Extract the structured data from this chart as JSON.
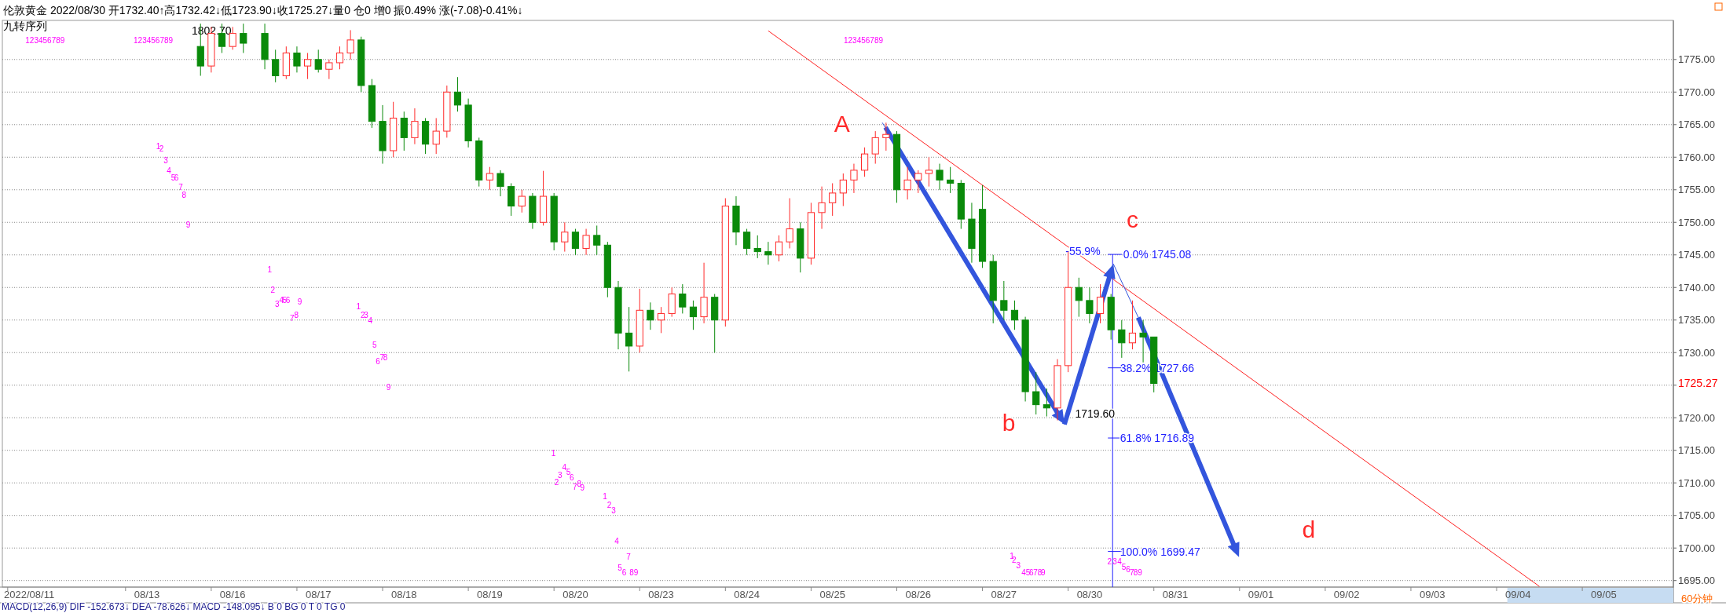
{
  "chart_data": {
    "type": "candlestick",
    "title": "伦敦黄金 2022/08/30 开1732.40↑高1732.42↓低1723.90↓收1725.27↓量0  仓0  增0 振0.49% 涨(-7.08)-0.41%↓",
    "subtitle": "九转序列",
    "categories": [
      null,
      null,
      "2022/08/11",
      null,
      null,
      null,
      null,
      null,
      null,
      null,
      null,
      null,
      null,
      "08/13",
      null,
      null,
      null,
      null,
      null,
      null,
      null,
      "08/16",
      null,
      null,
      null,
      null,
      null,
      null,
      null,
      "08/17",
      null,
      null,
      null,
      null,
      null,
      null,
      null,
      "08/18",
      null,
      null,
      null,
      null,
      null,
      null,
      null,
      "08/19",
      null,
      null,
      null,
      null,
      null,
      null,
      null,
      "08/20",
      null,
      null,
      null,
      null,
      null,
      null,
      null,
      "08/23",
      null,
      null,
      null,
      null,
      null,
      null,
      null,
      "08/24",
      null,
      null,
      null,
      null,
      null,
      null,
      null,
      "08/25",
      null,
      null,
      null,
      null,
      null,
      null,
      null,
      "08/26",
      null,
      null,
      null,
      null,
      null,
      null,
      null,
      "08/27",
      null,
      null,
      null,
      null,
      null,
      null,
      null,
      "08/30",
      null,
      null,
      null,
      null,
      null,
      null,
      null,
      "08/31",
      null,
      null,
      null,
      null,
      null,
      null,
      null,
      "09/01",
      null,
      null,
      null,
      null,
      null,
      null,
      null,
      "09/02",
      null,
      null,
      null,
      null,
      null,
      null,
      null,
      "09/03",
      null,
      null,
      null,
      null,
      null,
      null,
      null,
      "09/04",
      null,
      null,
      null,
      null,
      null,
      null,
      null,
      "09/05",
      null,
      null,
      null,
      null,
      null,
      null
    ],
    "ohlc": [
      null,
      null,
      null,
      null,
      null,
      null,
      null,
      null,
      null,
      null,
      null,
      null,
      null,
      null,
      null,
      null,
      null,
      null,
      [
        1777,
        1780.5,
        1772.5,
        1774
      ],
      [
        1774,
        1780,
        1773,
        1779
      ],
      [
        1779,
        1780.5,
        1776,
        1777
      ],
      [
        1777,
        1780,
        1776.5,
        1779
      ],
      [
        1779,
        1780.5,
        1776,
        1777.5
      ],
      null,
      [
        1779,
        1780.5,
        1773.5,
        1775
      ],
      [
        1775,
        1776.5,
        1771.5,
        1772.5
      ],
      [
        1772.5,
        1777,
        1772,
        1776
      ],
      [
        1776,
        1777,
        1773,
        1774
      ],
      [
        1774,
        1776,
        1772,
        1775
      ],
      [
        1775,
        1776.5,
        1773,
        1773.5
      ],
      [
        1773.5,
        1775,
        1772,
        1774.5
      ],
      [
        1774.5,
        1777,
        1773.5,
        1776
      ],
      [
        1776,
        1779.5,
        1775,
        1778
      ],
      [
        1778,
        1778.5,
        1770,
        1771
      ],
      [
        1771,
        1772,
        1764.5,
        1765.5
      ],
      [
        1765.5,
        1768,
        1759,
        1761
      ],
      [
        1761,
        1768.5,
        1760,
        1766
      ],
      [
        1766,
        1767,
        1761,
        1763
      ],
      [
        1763,
        1767.5,
        1762,
        1765.5
      ],
      [
        1765.5,
        1766,
        1760.5,
        1762
      ],
      [
        1762,
        1766,
        1760.5,
        1764
      ],
      [
        1764,
        1771,
        1763,
        1770
      ],
      [
        1770,
        1772.3,
        1767,
        1768
      ],
      [
        1768,
        1769,
        1761.5,
        1762.5
      ],
      [
        1762.5,
        1763,
        1755.5,
        1756.5
      ],
      [
        1756.5,
        1758.5,
        1755,
        1757.5
      ],
      [
        1757.5,
        1758,
        1754,
        1755.5
      ],
      [
        1755.5,
        1756,
        1751,
        1752.5
      ],
      [
        1752.5,
        1755,
        1751.5,
        1754
      ],
      [
        1754,
        1754.5,
        1749,
        1750
      ],
      [
        1750,
        1757.9,
        1749.5,
        1754
      ],
      [
        1754,
        1754.5,
        1745.7,
        1747
      ],
      [
        1747,
        1750,
        1745.5,
        1748.5
      ],
      [
        1748.5,
        1749,
        1745,
        1746
      ],
      [
        1746,
        1749,
        1745,
        1748
      ],
      [
        1748,
        1749.5,
        1745,
        1746.5
      ],
      [
        1746.5,
        1747,
        1738.5,
        1740
      ],
      [
        1740,
        1741,
        1730.5,
        1733
      ],
      [
        1733,
        1737,
        1727.1,
        1731
      ],
      [
        1731,
        1739.8,
        1730,
        1736.5
      ],
      [
        1736.5,
        1737.7,
        1733.5,
        1735
      ],
      [
        1735,
        1737,
        1733,
        1736
      ],
      [
        1736,
        1740,
        1735.5,
        1739
      ],
      [
        1739,
        1740.5,
        1736,
        1737
      ],
      [
        1737,
        1738,
        1733.5,
        1735.5
      ],
      [
        1735.5,
        1743.8,
        1734.5,
        1738.5
      ],
      [
        1738.5,
        1739,
        1730,
        1735
      ],
      [
        1735,
        1753.7,
        1734,
        1752.5
      ],
      [
        1752.5,
        1754,
        1746.5,
        1748.5
      ],
      [
        1748.5,
        1749,
        1745,
        1746
      ],
      [
        1746,
        1748,
        1744.5,
        1745.5
      ],
      [
        1745.5,
        1747,
        1743.5,
        1745
      ],
      [
        1745,
        1748,
        1744,
        1747
      ],
      [
        1747,
        1753.7,
        1746,
        1749
      ],
      [
        1749,
        1750,
        1742.3,
        1744.5
      ],
      [
        1744.5,
        1753,
        1743.5,
        1751.5
      ],
      [
        1751.5,
        1755.5,
        1749,
        1753
      ],
      [
        1753,
        1756,
        1751,
        1754.5
      ],
      [
        1754.5,
        1757.5,
        1752.5,
        1756.5
      ],
      [
        1756.5,
        1759,
        1754.5,
        1758
      ],
      [
        1758,
        1761.5,
        1757,
        1760.5
      ],
      [
        1760.5,
        1764,
        1759,
        1763
      ],
      [
        1763,
        1765.3,
        1761,
        1763.5
      ],
      [
        1763.5,
        1764,
        1753,
        1755
      ],
      [
        1755,
        1758.5,
        1753.5,
        1756.5
      ],
      [
        1756.5,
        1758,
        1754.5,
        1757.5
      ],
      [
        1757.5,
        1760,
        1755.5,
        1758
      ],
      [
        1758,
        1759,
        1755,
        1756.5
      ],
      [
        1756.5,
        1758.5,
        1754.5,
        1756
      ],
      [
        1756,
        1756.5,
        1749,
        1750.5
      ],
      [
        1750.5,
        1753,
        1743.8,
        1746
      ],
      [
        1752,
        1755.7,
        1743,
        1744
      ],
      [
        1744,
        1745,
        1734.5,
        1738
      ],
      [
        1738,
        1741,
        1735,
        1736.5
      ],
      [
        1736.5,
        1738,
        1733.5,
        1735
      ],
      [
        1735,
        1735.5,
        1722.5,
        1724
      ],
      [
        1724,
        1727,
        1720.5,
        1722
      ],
      [
        1722,
        1724.5,
        1720.2,
        1721.5
      ],
      [
        1721.5,
        1729,
        1719.6,
        1728
      ],
      [
        1728,
        1745.5,
        1727,
        1740
      ],
      [
        1740,
        1741.5,
        1735.5,
        1738
      ],
      [
        1738,
        1740,
        1734.5,
        1736
      ],
      [
        1736,
        1740.5,
        1734.5,
        1738.5
      ],
      [
        1738.5,
        1739,
        1732,
        1733.5
      ],
      [
        1733.5,
        1735,
        1729.2,
        1731.5
      ],
      [
        1731.5,
        1738,
        1730.5,
        1733
      ],
      [
        1733,
        1735,
        1728.5,
        1732.4
      ],
      [
        1732.4,
        1732.42,
        1723.9,
        1725.27
      ],
      null,
      null,
      null,
      null,
      null,
      null,
      null,
      null,
      null,
      null,
      null,
      null,
      null,
      null,
      null,
      null,
      null,
      null,
      null,
      null,
      null,
      null,
      null,
      null,
      null,
      null,
      null,
      null,
      null,
      null,
      null,
      null,
      null,
      null,
      null,
      null,
      null,
      null,
      null,
      null,
      null,
      null,
      null,
      null,
      null,
      null,
      null,
      null
    ],
    "series": [
      {
        "type": "line",
        "color": "#ff2020",
        "values": [
          null,
          null,
          null,
          null,
          null,
          null,
          null,
          null,
          null,
          null,
          null,
          null,
          null,
          null,
          null,
          null,
          null,
          null,
          null,
          null,
          null,
          null,
          null,
          null,
          null,
          null,
          null,
          null,
          null,
          null,
          null,
          null,
          null,
          null,
          null,
          null,
          null,
          null,
          null,
          null,
          null,
          null,
          null,
          null,
          null,
          null,
          null,
          null,
          null,
          null,
          null,
          null,
          null,
          null,
          null,
          null,
          null,
          null,
          null,
          null,
          null,
          null,
          null,
          null,
          null,
          null,
          null,
          null,
          null,
          null,
          null,
          1779.4,
          null,
          null,
          null,
          null,
          null,
          null,
          null,
          null,
          null,
          null,
          null,
          null,
          null,
          null,
          null,
          null,
          null,
          null,
          null,
          null,
          null,
          null,
          null,
          null,
          null,
          null,
          null,
          null,
          null,
          null,
          null,
          null,
          null,
          null,
          null,
          null,
          null,
          null,
          null,
          null,
          null,
          null,
          null,
          null,
          null,
          null,
          null,
          null,
          null,
          null,
          null,
          null,
          null,
          null,
          null,
          null,
          null,
          null,
          null,
          null,
          null,
          null,
          null,
          null,
          null,
          null,
          null,
          null,
          null,
          null,
          null,
          1694.1,
          null,
          null,
          null,
          null,
          null,
          null,
          null,
          null,
          null,
          null,
          null,
          null
        ]
      }
    ],
    "ylim": [
      1694,
      1781
    ],
    "yticks": [
      {
        "value": 1695,
        "label": "1695.00"
      },
      {
        "value": 1700,
        "label": "1700.00"
      },
      {
        "value": 1705,
        "label": "1705.00"
      },
      {
        "value": 1710,
        "label": "1710.00"
      },
      {
        "value": 1715,
        "label": "1715.00"
      },
      {
        "value": 1720,
        "label": "1720.00"
      },
      {
        "value": 1725,
        "label": null
      },
      {
        "value": 1730,
        "label": "1730.00"
      },
      {
        "value": 1735,
        "label": "1735.00"
      },
      {
        "value": 1740,
        "label": "1740.00"
      },
      {
        "value": 1745,
        "label": "1745.00"
      },
      {
        "value": 1750,
        "label": "1750.00"
      },
      {
        "value": 1755,
        "label": "1755.00"
      },
      {
        "value": 1760,
        "label": "1760.00"
      },
      {
        "value": 1765,
        "label": "1765.00"
      },
      {
        "value": 1770,
        "label": "1770.00"
      },
      {
        "value": 1775,
        "label": "1775.00"
      }
    ],
    "grid": "y",
    "annotations": [
      "A",
      "b",
      "c",
      "d",
      "1719.60",
      "-55.9%",
      "0.0% 1745.08",
      "38.2% 1727.66",
      "61.8% 1716.89",
      "100.0% 1699.47",
      "123456789",
      "123456789",
      "123456789",
      "1",
      "2",
      "3",
      "4",
      "5",
      "6",
      "7",
      "8",
      "9",
      "1",
      "2",
      "3",
      "4",
      "5",
      "6",
      "7",
      "8",
      "9",
      "1",
      "2",
      "3",
      "4",
      "5",
      "6",
      "7",
      "8",
      "9",
      "1",
      "2",
      "3",
      "4",
      "5",
      "6",
      "7",
      "8",
      "9",
      "1",
      "2",
      "3",
      "4",
      "5",
      "6",
      "7",
      "8",
      "9",
      "1",
      "2",
      "3",
      "4",
      "5",
      "6",
      "7",
      "8",
      "9",
      "2",
      "3",
      "4",
      "5",
      "6",
      "7",
      "8",
      "9",
      "1802.70",
      "MACD(12,26,9)  DIF -152.673↓  DEA -78.626↓  MACD -148.095↓  B 0  BG 0  T 0  TG 0",
      "60分钟",
      "1725.27"
    ]
  }
}
